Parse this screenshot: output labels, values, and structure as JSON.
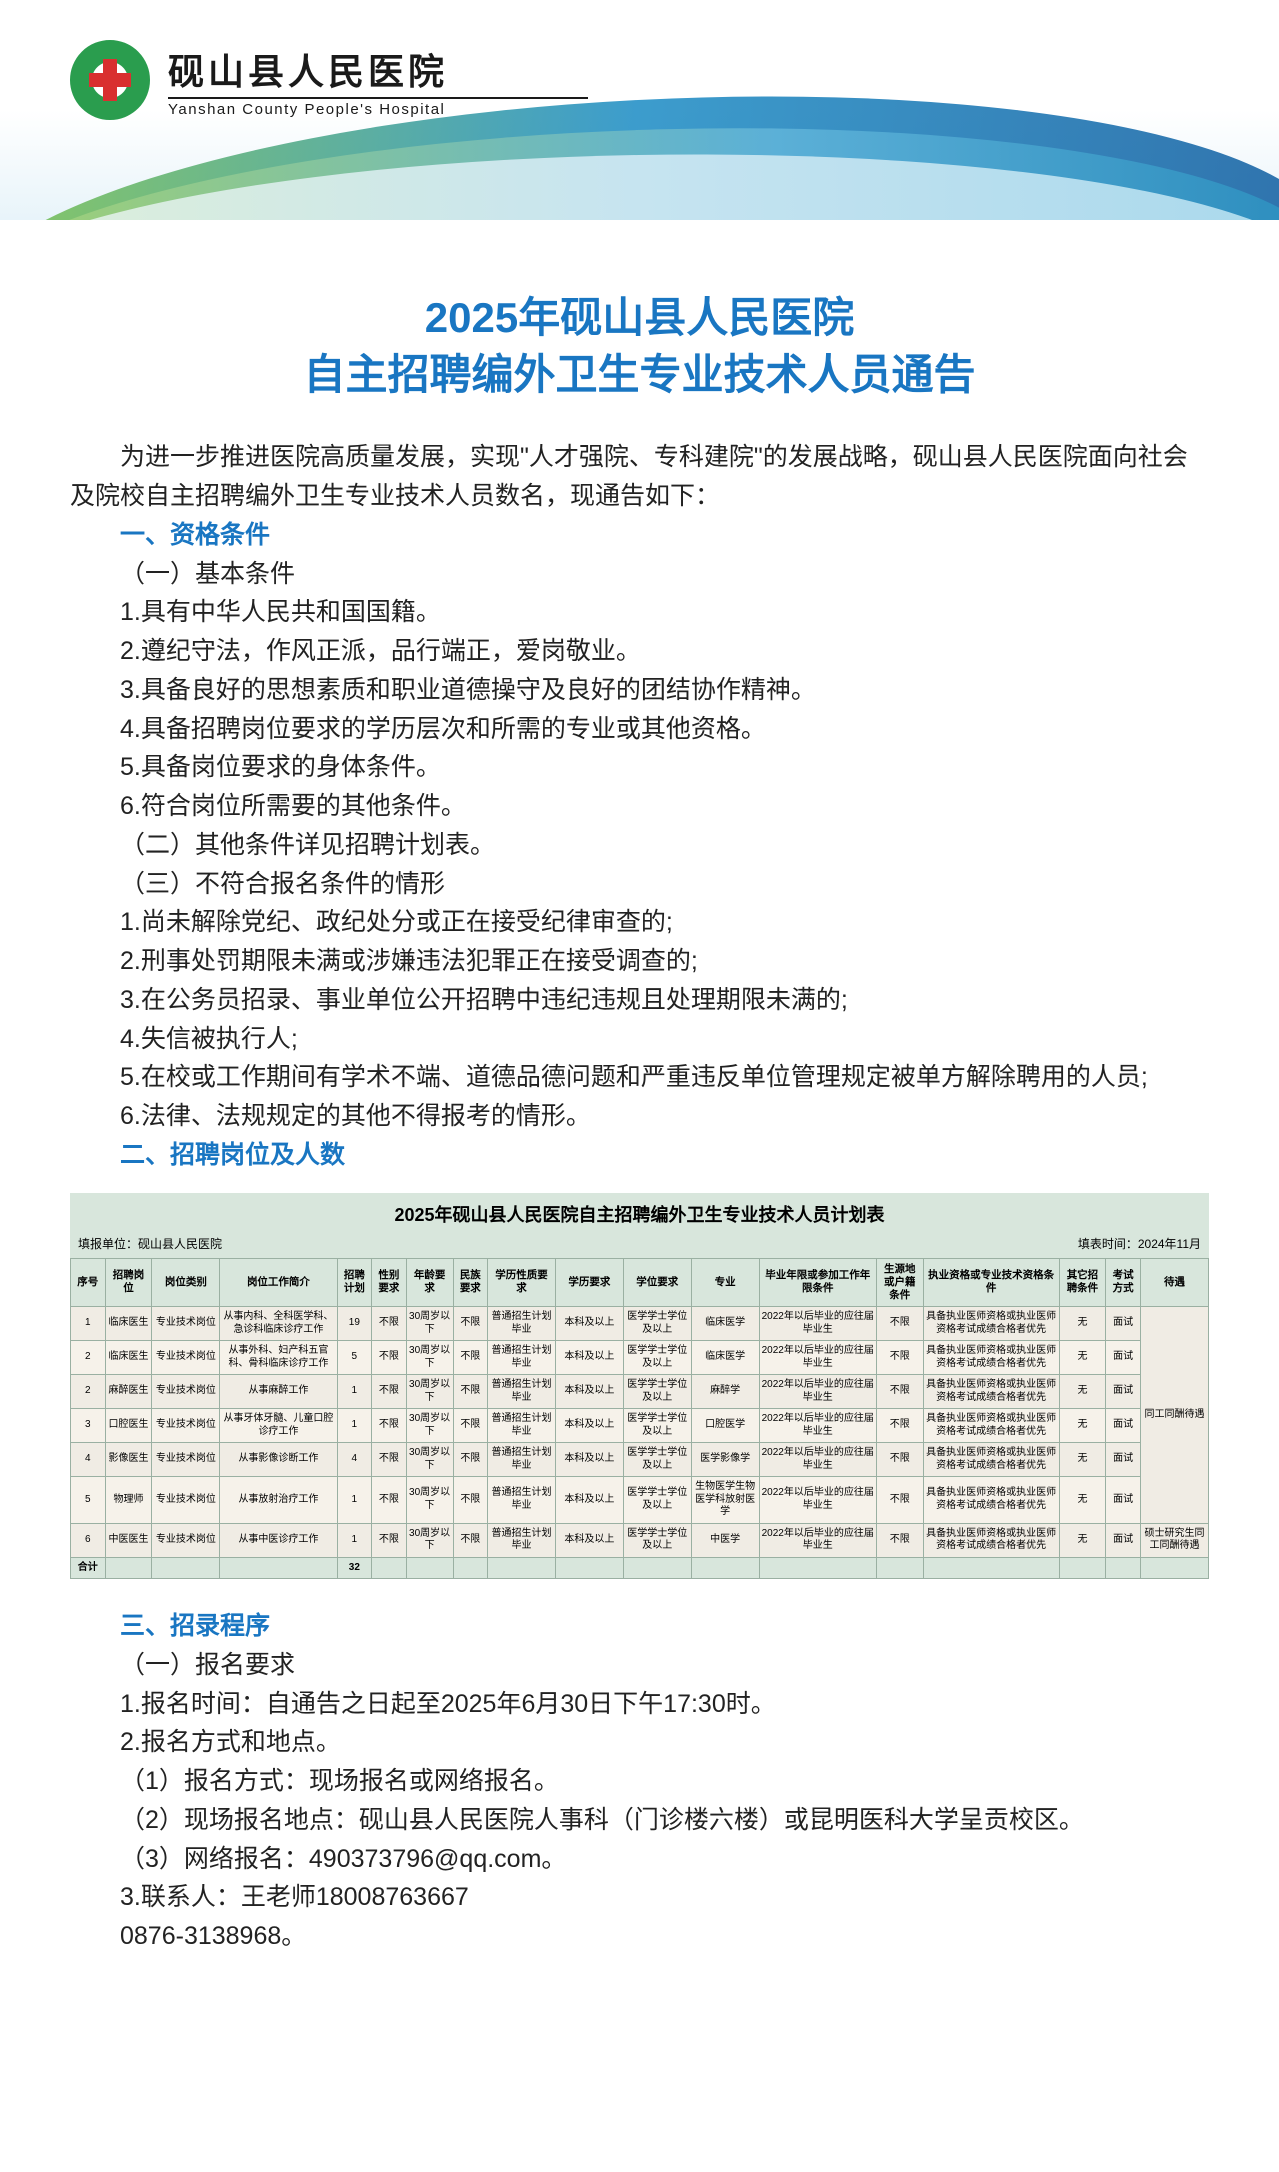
{
  "header": {
    "hospital_cn": "砚山县人民医院",
    "hospital_en": "Yanshan County People's Hospital"
  },
  "title_line1": "2025年砚山县人民医院",
  "title_line2": "自主招聘编外卫生专业技术人员通告",
  "intro": "为进一步推进医院高质量发展，实现\"人才强院、专科建院\"的发展战略，砚山县人民医院面向社会及院校自主招聘编外卫生专业技术人员数名，现通告如下：",
  "sec1": {
    "head": "一、资格条件",
    "sub1_title": "（一）基本条件",
    "sub1_items": [
      "1.具有中华人民共和国国籍。",
      "2.遵纪守法，作风正派，品行端正，爱岗敬业。",
      "3.具备良好的思想素质和职业道德操守及良好的团结协作精神。",
      "4.具备招聘岗位要求的学历层次和所需的专业或其他资格。",
      "5.具备岗位要求的身体条件。",
      "6.符合岗位所需要的其他条件。"
    ],
    "sub2": "（二）其他条件详见招聘计划表。",
    "sub3_title": "（三）不符合报名条件的情形",
    "sub3_items": [
      "1.尚未解除党纪、政纪处分或正在接受纪律审查的;",
      "2.刑事处罚期限未满或涉嫌违法犯罪正在接受调查的;",
      "3.在公务员招录、事业单位公开招聘中违纪违规且处理期限未满的;",
      "4.失信被执行人;",
      "5.在校或工作期间有学术不端、道德品德问题和严重违反单位管理规定被单方解除聘用的人员;",
      "6.法律、法规规定的其他不得报考的情形。"
    ]
  },
  "sec2": {
    "head": "二、招聘岗位及人数"
  },
  "table": {
    "title": "2025年砚山县人民医院自主招聘编外卫生专业技术人员计划表",
    "filler_left": "填报单位：砚山县人民医院",
    "filler_right": "填表时间：2024年11月",
    "headers": [
      "序号",
      "招聘岗位",
      "岗位类别",
      "岗位工作简介",
      "招聘计划",
      "性别要求",
      "年龄要求",
      "民族要求",
      "学历性质要求",
      "学历要求",
      "学位要求",
      "专业",
      "毕业年限或参加工作年限条件",
      "生源地或户籍条件",
      "执业资格或专业技术资格条件",
      "其它招聘条件",
      "考试方式",
      "待遇"
    ],
    "rows": [
      {
        "cells": [
          "1",
          "临床医生",
          "专业技术岗位",
          "从事内科、全科医学科、急诊科临床诊疗工作",
          "19",
          "不限",
          "30周岁以下",
          "不限",
          "普通招生计划毕业",
          "本科及以上",
          "医学学士学位及以上",
          "临床医学",
          "2022年以后毕业的应往届毕业生",
          "不限",
          "具备执业医师资格或执业医师资格考试成绩合格者优先",
          "无",
          "面试"
        ]
      },
      {
        "cells": [
          "2",
          "临床医生",
          "专业技术岗位",
          "从事外科、妇产科五官科、骨科临床诊疗工作",
          "5",
          "不限",
          "30周岁以下",
          "不限",
          "普通招生计划毕业",
          "本科及以上",
          "医学学士学位及以上",
          "临床医学",
          "2022年以后毕业的应往届毕业生",
          "不限",
          "具备执业医师资格或执业医师资格考试成绩合格者优先",
          "无",
          "面试"
        ]
      },
      {
        "cells": [
          "2",
          "麻醉医生",
          "专业技术岗位",
          "从事麻醉工作",
          "1",
          "不限",
          "30周岁以下",
          "不限",
          "普通招生计划毕业",
          "本科及以上",
          "医学学士学位及以上",
          "麻醉学",
          "2022年以后毕业的应往届毕业生",
          "不限",
          "具备执业医师资格或执业医师资格考试成绩合格者优先",
          "无",
          "面试"
        ]
      },
      {
        "cells": [
          "3",
          "口腔医生",
          "专业技术岗位",
          "从事牙体牙髓、儿童口腔诊疗工作",
          "1",
          "不限",
          "30周岁以下",
          "不限",
          "普通招生计划毕业",
          "本科及以上",
          "医学学士学位及以上",
          "口腔医学",
          "2022年以后毕业的应往届毕业生",
          "不限",
          "具备执业医师资格或执业医师资格考试成绩合格者优先",
          "无",
          "面试"
        ]
      },
      {
        "cells": [
          "4",
          "影像医生",
          "专业技术岗位",
          "从事影像诊断工作",
          "4",
          "不限",
          "30周岁以下",
          "不限",
          "普通招生计划毕业",
          "本科及以上",
          "医学学士学位及以上",
          "医学影像学",
          "2022年以后毕业的应往届毕业生",
          "不限",
          "具备执业医师资格或执业医师资格考试成绩合格者优先",
          "无",
          "面试"
        ]
      },
      {
        "cells": [
          "5",
          "物理师",
          "专业技术岗位",
          "从事放射治疗工作",
          "1",
          "不限",
          "30周岁以下",
          "不限",
          "普通招生计划毕业",
          "本科及以上",
          "医学学士学位及以上",
          "生物医学生物医学科放射医学",
          "2022年以后毕业的应往届毕业生",
          "不限",
          "具备执业医师资格或执业医师资格考试成绩合格者优先",
          "无",
          "面试"
        ]
      },
      {
        "cells": [
          "6",
          "中医医生",
          "专业技术岗位",
          "从事中医诊疗工作",
          "1",
          "不限",
          "30周岁以下",
          "不限",
          "普通招生计划毕业",
          "本科及以上",
          "医学学士学位及以上",
          "中医学",
          "2022年以后毕业的应往届毕业生",
          "不限",
          "具备执业医师资格或执业医师资格考试成绩合格者优先",
          "无",
          "面试"
        ]
      }
    ],
    "treatment_main": "同工同酬待遇",
    "treatment_last": "硕士研究生同工同酬待遇",
    "total_label": "合计",
    "total_count": "32"
  },
  "sec3": {
    "head": "三、招录程序",
    "sub1_title": "（一）报名要求",
    "items": [
      "1.报名时间：自通告之日起至2025年6月30日下午17:30时。",
      "2.报名方式和地点。",
      "（1）报名方式：现场报名或网络报名。",
      "（2）现场报名地点：砚山县人民医院人事科（门诊楼六楼）或昆明医科大学呈贡校区。",
      "（3）网络报名：490373796@qq.com。",
      "3.联系人：王老师18008763667",
      "0876-3138968。"
    ]
  },
  "colors": {
    "accent_blue": "#1976c2",
    "table_header_bg": "#d8e6dc",
    "table_row_odd": "#f0ece4",
    "table_row_even": "#f6f2ea",
    "table_border": "#9ab0a2"
  }
}
